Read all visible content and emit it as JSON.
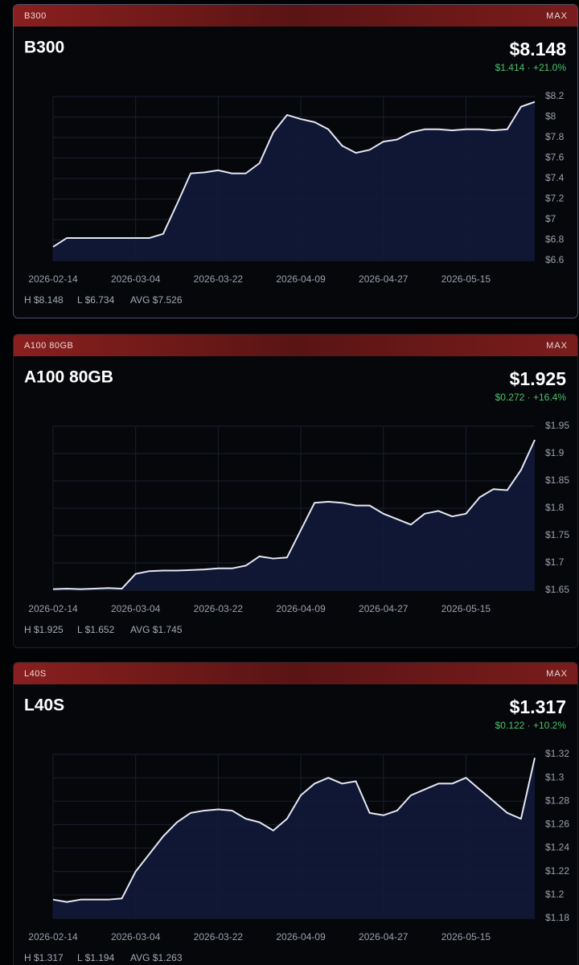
{
  "chart_data": [
    {
      "type": "line",
      "header": "B300",
      "range": "MAX",
      "title": "B300",
      "price": "$8.148",
      "change": "$1.414 · +21.0%",
      "stats": [
        "H $8.148",
        "L $6.734",
        "AVG $7.526"
      ],
      "x": [
        "2026-02-14",
        "2026-02-17",
        "2026-02-20",
        "2026-02-23",
        "2026-02-26",
        "2026-03-01",
        "2026-03-04",
        "2026-03-07",
        "2026-03-10",
        "2026-03-13",
        "2026-03-16",
        "2026-03-19",
        "2026-03-22",
        "2026-03-25",
        "2026-03-28",
        "2026-03-31",
        "2026-04-03",
        "2026-04-06",
        "2026-04-09",
        "2026-04-12",
        "2026-04-15",
        "2026-04-18",
        "2026-04-21",
        "2026-04-24",
        "2026-04-27",
        "2026-04-30",
        "2026-05-03",
        "2026-05-06",
        "2026-05-09",
        "2026-05-12",
        "2026-05-15",
        "2026-05-18",
        "2026-05-21",
        "2026-05-24",
        "2026-05-27",
        "2026-05-30"
      ],
      "series": [
        {
          "color": "#e4e8f4",
          "values": [
            6.734,
            6.82,
            6.82,
            6.82,
            6.82,
            6.82,
            6.82,
            6.82,
            6.86,
            7.15,
            7.45,
            7.46,
            7.48,
            7.45,
            7.45,
            7.55,
            7.85,
            8.02,
            7.98,
            7.95,
            7.88,
            7.72,
            7.65,
            7.68,
            7.76,
            7.78,
            7.85,
            7.88,
            7.88,
            7.87,
            7.88,
            7.88,
            7.87,
            7.88,
            8.1,
            8.148
          ]
        }
      ],
      "xlim": [
        "2026-02-14",
        "2026-05-30"
      ],
      "xticks": [
        "2026-02-14",
        "2026-03-04",
        "2026-03-22",
        "2026-04-09",
        "2026-04-27",
        "2026-05-15"
      ],
      "ylim": [
        6.6,
        8.2
      ],
      "yticks": [
        {
          "value": 6.6,
          "label": "$6.6"
        },
        {
          "value": 6.8,
          "label": "$6.8"
        },
        {
          "value": 7,
          "label": "$7"
        },
        {
          "value": 7.2,
          "label": "$7.2"
        },
        {
          "value": 7.4,
          "label": "$7.4"
        },
        {
          "value": 7.6,
          "label": "$7.6"
        },
        {
          "value": 7.8,
          "label": "$7.8"
        },
        {
          "value": 8,
          "label": "$8"
        },
        {
          "value": 8.2,
          "label": "$8.2"
        }
      ],
      "grid": true
    },
    {
      "type": "line",
      "header": "A100 80GB",
      "range": "MAX",
      "title": "A100 80GB",
      "price": "$1.925",
      "change": "$0.272 · +16.4%",
      "stats": [
        "H $1.925",
        "L $1.652",
        "AVG $1.745"
      ],
      "x": [
        "2026-02-14",
        "2026-02-17",
        "2026-02-20",
        "2026-02-23",
        "2026-02-26",
        "2026-03-01",
        "2026-03-04",
        "2026-03-07",
        "2026-03-10",
        "2026-03-13",
        "2026-03-16",
        "2026-03-19",
        "2026-03-22",
        "2026-03-25",
        "2026-03-28",
        "2026-03-31",
        "2026-04-03",
        "2026-04-06",
        "2026-04-09",
        "2026-04-12",
        "2026-04-15",
        "2026-04-18",
        "2026-04-21",
        "2026-04-24",
        "2026-04-27",
        "2026-04-30",
        "2026-05-03",
        "2026-05-06",
        "2026-05-09",
        "2026-05-12",
        "2026-05-15",
        "2026-05-18",
        "2026-05-21",
        "2026-05-24",
        "2026-05-27",
        "2026-05-30"
      ],
      "series": [
        {
          "color": "#e4e8f4",
          "values": [
            1.652,
            1.653,
            1.652,
            1.653,
            1.654,
            1.653,
            1.68,
            1.685,
            1.686,
            1.686,
            1.687,
            1.688,
            1.69,
            1.69,
            1.695,
            1.712,
            1.708,
            1.71,
            1.76,
            1.81,
            1.812,
            1.81,
            1.805,
            1.805,
            1.79,
            1.78,
            1.77,
            1.79,
            1.795,
            1.785,
            1.79,
            1.82,
            1.835,
            1.833,
            1.87,
            1.925
          ]
        }
      ],
      "xlim": [
        "2026-02-14",
        "2026-05-30"
      ],
      "xticks": [
        "2026-02-14",
        "2026-03-04",
        "2026-03-22",
        "2026-04-09",
        "2026-04-27",
        "2026-05-15"
      ],
      "ylim": [
        1.65,
        1.95
      ],
      "yticks": [
        {
          "value": 1.65,
          "label": "$1.65"
        },
        {
          "value": 1.7,
          "label": "$1.7"
        },
        {
          "value": 1.75,
          "label": "$1.75"
        },
        {
          "value": 1.8,
          "label": "$1.8"
        },
        {
          "value": 1.85,
          "label": "$1.85"
        },
        {
          "value": 1.9,
          "label": "$1.9"
        },
        {
          "value": 1.95,
          "label": "$1.95"
        }
      ],
      "grid": true
    },
    {
      "type": "line",
      "header": "L40S",
      "range": "MAX",
      "title": "L40S",
      "price": "$1.317",
      "change": "$0.122 · +10.2%",
      "stats": [
        "H $1.317",
        "L $1.194",
        "AVG $1.263"
      ],
      "x": [
        "2026-02-14",
        "2026-02-17",
        "2026-02-20",
        "2026-02-23",
        "2026-02-26",
        "2026-03-01",
        "2026-03-04",
        "2026-03-07",
        "2026-03-10",
        "2026-03-13",
        "2026-03-16",
        "2026-03-19",
        "2026-03-22",
        "2026-03-25",
        "2026-03-28",
        "2026-03-31",
        "2026-04-03",
        "2026-04-06",
        "2026-04-09",
        "2026-04-12",
        "2026-04-15",
        "2026-04-18",
        "2026-04-21",
        "2026-04-24",
        "2026-04-27",
        "2026-04-30",
        "2026-05-03",
        "2026-05-06",
        "2026-05-09",
        "2026-05-12",
        "2026-05-15",
        "2026-05-18",
        "2026-05-21",
        "2026-05-24",
        "2026-05-27",
        "2026-05-30"
      ],
      "series": [
        {
          "color": "#e4e8f4",
          "values": [
            1.196,
            1.194,
            1.196,
            1.196,
            1.196,
            1.197,
            1.22,
            1.235,
            1.25,
            1.262,
            1.27,
            1.272,
            1.273,
            1.272,
            1.265,
            1.262,
            1.255,
            1.265,
            1.285,
            1.295,
            1.3,
            1.295,
            1.297,
            1.27,
            1.268,
            1.272,
            1.285,
            1.29,
            1.295,
            1.295,
            1.3,
            1.29,
            1.28,
            1.27,
            1.265,
            1.317
          ]
        }
      ],
      "xlim": [
        "2026-02-14",
        "2026-05-30"
      ],
      "xticks": [
        "2026-02-14",
        "2026-03-04",
        "2026-03-22",
        "2026-04-09",
        "2026-04-27",
        "2026-05-15"
      ],
      "ylim": [
        1.18,
        1.32
      ],
      "yticks": [
        {
          "value": 1.18,
          "label": "$1.18"
        },
        {
          "value": 1.2,
          "label": "$1.2"
        },
        {
          "value": 1.22,
          "label": "$1.22"
        },
        {
          "value": 1.24,
          "label": "$1.24"
        },
        {
          "value": 1.26,
          "label": "$1.26"
        },
        {
          "value": 1.28,
          "label": "$1.28"
        },
        {
          "value": 1.3,
          "label": "$1.3"
        },
        {
          "value": 1.32,
          "label": "$1.32"
        }
      ],
      "grid": true
    }
  ]
}
